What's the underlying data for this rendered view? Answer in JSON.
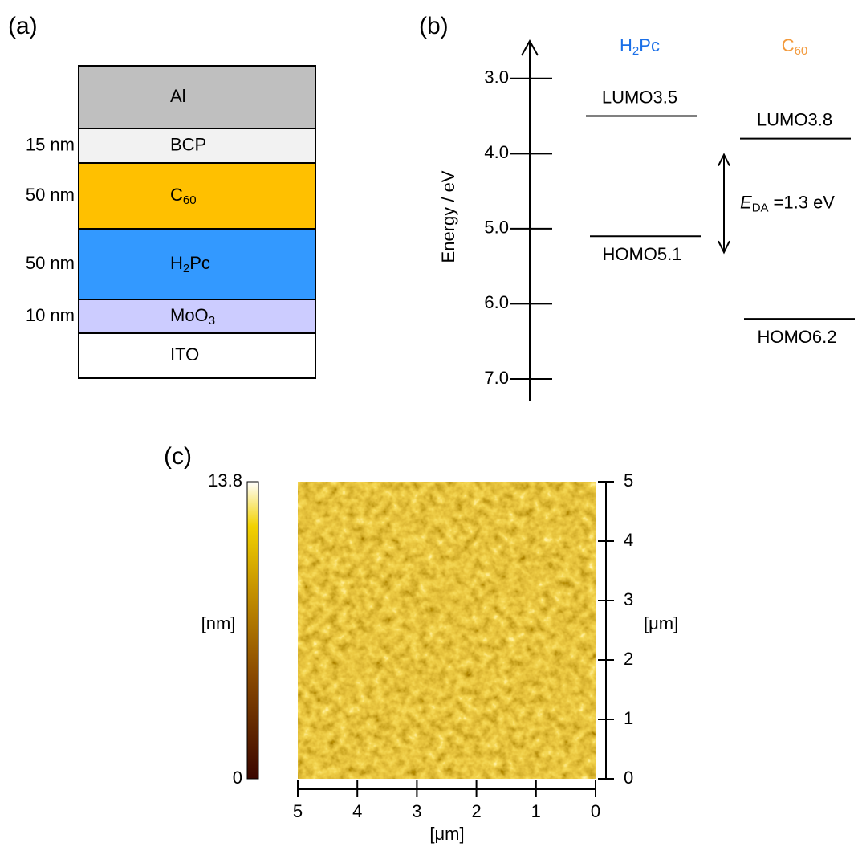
{
  "panel_a": {
    "label": "(a)",
    "layers": [
      {
        "name": {
          "text": "Al"
        },
        "color": "#bfbfbf"
      },
      {
        "name": {
          "text": "BCP"
        },
        "thickness": "15 nm",
        "color": "#f2f2f2"
      },
      {
        "name": {
          "text": "C",
          "sub": "60"
        },
        "thickness": "50 nm",
        "color": "#ffc000"
      },
      {
        "name": {
          "text": "H",
          "sub": "2",
          "tail": "Pc"
        },
        "thickness": "50 nm",
        "color": "#3399ff"
      },
      {
        "name": {
          "text": "MoO",
          "sub": "3"
        },
        "thickness": "10 nm",
        "color": "#ccccff"
      },
      {
        "name": {
          "text": "ITO"
        },
        "color": "#ffffff"
      }
    ]
  },
  "panel_b": {
    "label": "(b)",
    "axis_label": "Energy / eV",
    "ylim": [
      2.5,
      7.3
    ],
    "yticks": [
      {
        "value": 3,
        "label": "3.0"
      },
      {
        "value": 4,
        "label": "4.0"
      },
      {
        "value": 5,
        "label": "5.0"
      },
      {
        "value": 6,
        "label": "6.0"
      },
      {
        "value": 7,
        "label": "7.0"
      }
    ],
    "materials": [
      {
        "name": {
          "text": "H",
          "sub": "2",
          "tail": "Pc"
        },
        "color": "#1a6fe8",
        "lumo": {
          "label": "LUMO3.5",
          "value": 3.5
        },
        "homo": {
          "label": "HOMO5.1",
          "value": 5.1
        }
      },
      {
        "name": {
          "text": "C",
          "sub": "60"
        },
        "color": "#f39a3c",
        "lumo": {
          "label": "LUMO3.8",
          "value": 3.8
        },
        "homo": {
          "label": "HOMO6.2",
          "value": 6.2
        }
      }
    ],
    "gap": {
      "text": "E",
      "sub": "DA",
      "tail": "=1.3 eV"
    }
  },
  "panel_c": {
    "label": "(c)",
    "colorbar": {
      "label": "[nm]",
      "range": [
        0,
        13.8
      ],
      "ticks": [
        13.8,
        0
      ]
    },
    "xlim": [
      5,
      0
    ],
    "xticks": [
      5,
      4,
      3,
      2,
      1,
      0
    ],
    "xlabel": "[μm]",
    "ylim": [
      0,
      5
    ],
    "yticks": [
      0,
      1,
      2,
      3,
      4,
      5
    ],
    "ylabel": "[μm]"
  }
}
